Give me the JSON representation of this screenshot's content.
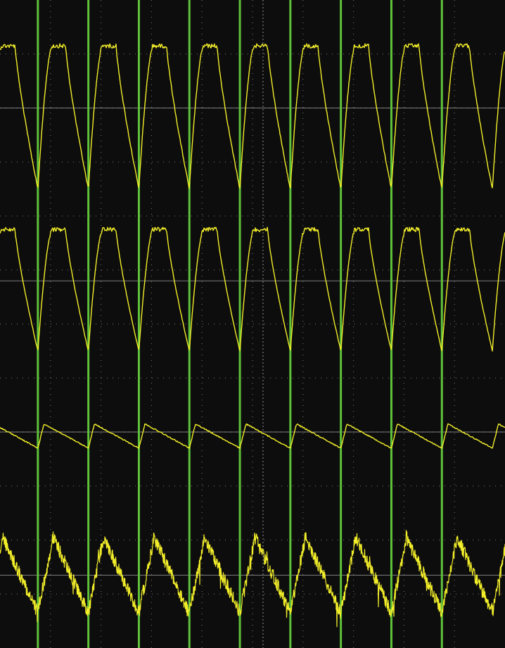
{
  "chart_data": {
    "type": "line",
    "title": "",
    "xlabel": "",
    "ylabel": "",
    "grid": true,
    "trace_color": "#f2ee2a",
    "marker_color": "#5fc23a",
    "grid_color": "#7a7a7a",
    "axis_color": "#c8c8c8",
    "background": "#0d0d0d",
    "x_divisions": 10,
    "y_divisions": 12,
    "period_divisions": 1,
    "markers_x": [
      0.75,
      1.75,
      2.75,
      3.75,
      4.75,
      5.75,
      6.75,
      7.75,
      8.75
    ],
    "channels": [
      {
        "name": "",
        "shape": "pulse",
        "baseline_div": 2.0,
        "high_div": 0.85,
        "low_div": 3.5,
        "noise": 0.04
      },
      {
        "name": "",
        "shape": "pulse",
        "baseline_div": 5.2,
        "high_div": 4.25,
        "low_div": 6.5,
        "noise": 0.02
      },
      {
        "name": "",
        "shape": "sawtooth_small",
        "baseline_div": 8.0,
        "high_div": 7.85,
        "low_div": 8.3,
        "noise": 0.02
      },
      {
        "name": "",
        "shape": "triangle_noisy",
        "baseline_div": 10.65,
        "high_div": 9.95,
        "low_div": 11.35,
        "noise": 0.25
      }
    ]
  }
}
